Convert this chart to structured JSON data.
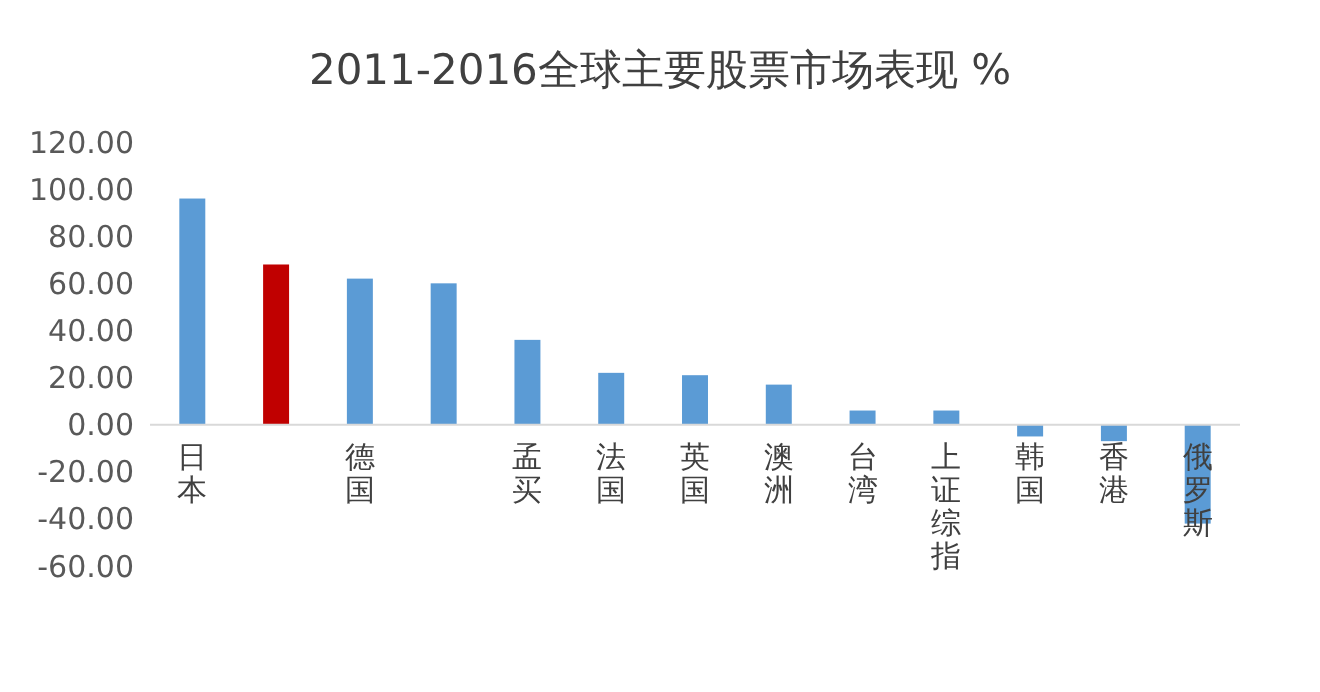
{
  "chart_data": {
    "type": "bar",
    "title": "2011-2016全球主要股票市场表现 %",
    "categories": [
      "日本",
      null,
      "德国",
      null,
      "孟买",
      "法国",
      "英国",
      "澳洲",
      "台湾",
      "上证综指",
      "韩国",
      "香港",
      "俄罗斯"
    ],
    "values": [
      96,
      68,
      62,
      60,
      36,
      22,
      21,
      17,
      6,
      6,
      -5,
      -7,
      -42
    ],
    "colors": [
      "#5b9bd5",
      "#c00000",
      "#5b9bd5",
      "#5b9bd5",
      "#5b9bd5",
      "#5b9bd5",
      "#5b9bd5",
      "#5b9bd5",
      "#5b9bd5",
      "#5b9bd5",
      "#5b9bd5",
      "#5b9bd5",
      "#5b9bd5"
    ],
    "ylim": [
      -60,
      120
    ],
    "yticks": [
      {
        "value": -60,
        "label": "-60.00"
      },
      {
        "value": -40,
        "label": "-40.00"
      },
      {
        "value": -20,
        "label": "-20.00"
      },
      {
        "value": 0,
        "label": "0.00"
      },
      {
        "value": 20,
        "label": "20.00"
      },
      {
        "value": 40,
        "label": "40.00"
      },
      {
        "value": 60,
        "label": "60.00"
      },
      {
        "value": 80,
        "label": "80.00"
      },
      {
        "value": 100,
        "label": "100.00"
      },
      {
        "value": 120,
        "label": "120.00"
      }
    ],
    "grid": false
  }
}
